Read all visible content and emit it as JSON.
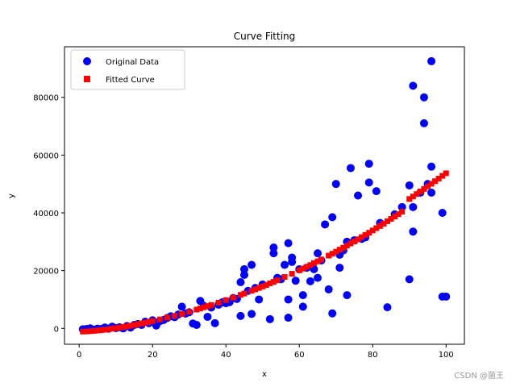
{
  "chart_data": {
    "type": "scatter",
    "title": "Curve Fitting",
    "xlabel": "x",
    "ylabel": "y",
    "xlim": [
      -4,
      105
    ],
    "ylim": [
      -5500,
      97500
    ],
    "xticks": [
      0,
      20,
      40,
      60,
      80,
      100
    ],
    "yticks": [
      0,
      20000,
      40000,
      60000,
      80000
    ],
    "xtick_labels": [
      "0",
      "20",
      "40",
      "60",
      "80",
      "100"
    ],
    "ytick_labels": [
      "0",
      "20000",
      "40000",
      "60000",
      "80000"
    ],
    "grid": false,
    "legend_position": "top-left",
    "series": [
      {
        "name": "Original Data",
        "marker": "circle",
        "color": "#0000ff",
        "points": [
          [
            1,
            -300
          ],
          [
            2,
            -200
          ],
          [
            3,
            0
          ],
          [
            4,
            -400
          ],
          [
            5,
            -100
          ],
          [
            6,
            -200
          ],
          [
            7,
            300
          ],
          [
            8,
            -100
          ],
          [
            9,
            600
          ],
          [
            10,
            100
          ],
          [
            11,
            400
          ],
          [
            12,
            0
          ],
          [
            13,
            800
          ],
          [
            14,
            300
          ],
          [
            15,
            1200
          ],
          [
            16,
            1500
          ],
          [
            17,
            1200
          ],
          [
            18,
            2300
          ],
          [
            19,
            1800
          ],
          [
            20,
            2800
          ],
          [
            21,
            1000
          ],
          [
            22,
            2500
          ],
          [
            23,
            2900
          ],
          [
            24,
            3600
          ],
          [
            25,
            4200
          ],
          [
            26,
            3900
          ],
          [
            27,
            4800
          ],
          [
            28,
            7500
          ],
          [
            29,
            5100
          ],
          [
            30,
            5600
          ],
          [
            31,
            1700
          ],
          [
            32,
            1200
          ],
          [
            33,
            9500
          ],
          [
            34,
            7800
          ],
          [
            35,
            4000
          ],
          [
            36,
            7200
          ],
          [
            37,
            1800
          ],
          [
            38,
            8200
          ],
          [
            39,
            9000
          ],
          [
            40,
            8700
          ],
          [
            41,
            9100
          ],
          [
            42,
            10500
          ],
          [
            43,
            10200
          ],
          [
            44,
            4300
          ],
          [
            44,
            16000
          ],
          [
            45,
            20500
          ],
          [
            45,
            18500
          ],
          [
            46,
            13000
          ],
          [
            47,
            22000
          ],
          [
            47,
            5000
          ],
          [
            48,
            14000
          ],
          [
            49,
            10000
          ],
          [
            50,
            15200
          ],
          [
            52,
            3200
          ],
          [
            53,
            26000
          ],
          [
            53,
            28000
          ],
          [
            54,
            17500
          ],
          [
            55,
            17000
          ],
          [
            56,
            22000
          ],
          [
            57,
            29500
          ],
          [
            57,
            10000
          ],
          [
            57,
            3700
          ],
          [
            58,
            24500
          ],
          [
            58,
            23000
          ],
          [
            59,
            16500
          ],
          [
            60,
            20500
          ],
          [
            61,
            7500
          ],
          [
            61,
            11500
          ],
          [
            62,
            21000
          ],
          [
            63,
            16300
          ],
          [
            64,
            20500
          ],
          [
            65,
            26000
          ],
          [
            65,
            17500
          ],
          [
            66,
            23500
          ],
          [
            67,
            36000
          ],
          [
            68,
            13500
          ],
          [
            69,
            5200
          ],
          [
            69,
            38500
          ],
          [
            70,
            50000
          ],
          [
            71,
            25500
          ],
          [
            71,
            21000
          ],
          [
            72,
            27000
          ],
          [
            73,
            30000
          ],
          [
            73,
            11500
          ],
          [
            74,
            55500
          ],
          [
            75,
            30500
          ],
          [
            76,
            46000
          ],
          [
            77,
            31000
          ],
          [
            78,
            31500
          ],
          [
            79,
            57000
          ],
          [
            79,
            50500
          ],
          [
            81,
            47500
          ],
          [
            82,
            36500
          ],
          [
            84,
            7300
          ],
          [
            86,
            39500
          ],
          [
            88,
            42000
          ],
          [
            90,
            17000
          ],
          [
            90,
            49500
          ],
          [
            91,
            84000
          ],
          [
            91,
            42000
          ],
          [
            91,
            33500
          ],
          [
            93,
            47000
          ],
          [
            94,
            71000
          ],
          [
            94,
            80000
          ],
          [
            95,
            50000
          ],
          [
            96,
            92500
          ],
          [
            96,
            56000
          ],
          [
            96,
            47000
          ],
          [
            99,
            40000
          ],
          [
            99,
            11000
          ],
          [
            100,
            11000
          ]
        ]
      },
      {
        "name": "Fitted Curve",
        "marker": "square",
        "color": "#ff0000",
        "points": [
          [
            1,
            -1100
          ],
          [
            2,
            -1050
          ],
          [
            3,
            -950
          ],
          [
            4,
            -850
          ],
          [
            5,
            -750
          ],
          [
            6,
            -600
          ],
          [
            7,
            -450
          ],
          [
            8,
            -300
          ],
          [
            9,
            -100
          ],
          [
            10,
            100
          ],
          [
            11,
            300
          ],
          [
            12,
            500
          ],
          [
            13,
            700
          ],
          [
            14,
            950
          ],
          [
            15,
            1200
          ],
          [
            16,
            1450
          ],
          [
            17,
            1700
          ],
          [
            18,
            2000
          ],
          [
            19,
            2250
          ],
          [
            20,
            2550
          ],
          [
            22,
            3100
          ],
          [
            24,
            3750
          ],
          [
            26,
            4350
          ],
          [
            28,
            5000
          ],
          [
            30,
            5750
          ],
          [
            32,
            6500
          ],
          [
            33,
            6900
          ],
          [
            34,
            7300
          ],
          [
            35,
            7700
          ],
          [
            36,
            8100
          ],
          [
            38,
            8900
          ],
          [
            40,
            9800
          ],
          [
            42,
            10650
          ],
          [
            44,
            11600
          ],
          [
            45,
            12050
          ],
          [
            47,
            13000
          ],
          [
            48,
            13500
          ],
          [
            49,
            14000
          ],
          [
            50,
            14500
          ],
          [
            51,
            15000
          ],
          [
            52,
            15600
          ],
          [
            53,
            16100
          ],
          [
            54,
            16650
          ],
          [
            56,
            17800
          ],
          [
            58,
            18900
          ],
          [
            60,
            20100
          ],
          [
            61,
            20700
          ],
          [
            62,
            21300
          ],
          [
            63,
            21900
          ],
          [
            64,
            22600
          ],
          [
            65,
            23200
          ],
          [
            66,
            23850
          ],
          [
            68,
            25200
          ],
          [
            69,
            25850
          ],
          [
            70,
            26550
          ],
          [
            71,
            27250
          ],
          [
            72,
            27950
          ],
          [
            73,
            28650
          ],
          [
            74,
            29400
          ],
          [
            75,
            30100
          ],
          [
            76,
            30850
          ],
          [
            77,
            31600
          ],
          [
            78,
            32350
          ],
          [
            79,
            33100
          ],
          [
            80,
            33900
          ],
          [
            81,
            34700
          ],
          [
            82,
            35450
          ],
          [
            83,
            36250
          ],
          [
            84,
            37100
          ],
          [
            85,
            37900
          ],
          [
            86,
            38700
          ],
          [
            87,
            39550
          ],
          [
            88,
            40400
          ],
          [
            90,
            44800
          ],
          [
            91,
            45650
          ],
          [
            92,
            46500
          ],
          [
            93,
            47400
          ],
          [
            94,
            48300
          ],
          [
            95,
            49150
          ],
          [
            96,
            50050
          ],
          [
            97,
            50950
          ],
          [
            98,
            51850
          ],
          [
            99,
            52800
          ],
          [
            100,
            53700
          ]
        ]
      }
    ]
  },
  "watermark": "CSDN @菌王"
}
